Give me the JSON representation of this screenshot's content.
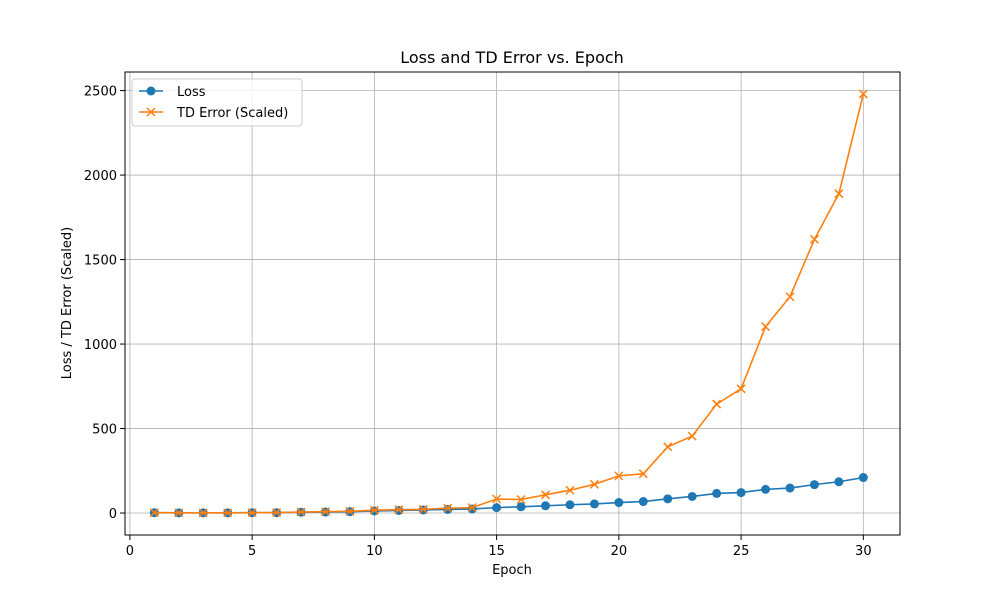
{
  "chart_data": {
    "type": "line",
    "title": "Loss and TD Error vs. Epoch",
    "xlabel": "Epoch",
    "ylabel": "Loss / TD Error (Scaled)",
    "xlim": [
      -0.2,
      31.5
    ],
    "ylim": [
      -130,
      2610
    ],
    "xticks": [
      0,
      5,
      10,
      15,
      20,
      25,
      30
    ],
    "yticks": [
      0,
      500,
      1000,
      1500,
      2000,
      2500
    ],
    "grid": true,
    "legend_position": "top-left",
    "x": [
      1,
      2,
      3,
      4,
      5,
      6,
      7,
      8,
      9,
      10,
      11,
      12,
      13,
      14,
      15,
      16,
      17,
      18,
      19,
      20,
      21,
      22,
      23,
      24,
      25,
      26,
      27,
      28,
      29,
      30
    ],
    "series": [
      {
        "name": "Loss",
        "color": "#1f77b4",
        "marker": "circle",
        "values": [
          2,
          1,
          1,
          1,
          2,
          2,
          5,
          6,
          8,
          12,
          15,
          18,
          21,
          24,
          32,
          37,
          43,
          49,
          54,
          62,
          68,
          84,
          98,
          116,
          121,
          140,
          148,
          168,
          185,
          210
        ]
      },
      {
        "name": "TD Error (Scaled)",
        "color": "#ff7f0e",
        "marker": "x",
        "values": [
          2,
          1,
          1,
          1,
          2,
          3,
          6,
          8,
          10,
          17,
          20,
          22,
          29,
          32,
          83,
          80,
          108,
          135,
          170,
          220,
          232,
          392,
          455,
          645,
          735,
          1103,
          1280,
          1620,
          1890,
          2480
        ]
      }
    ]
  }
}
